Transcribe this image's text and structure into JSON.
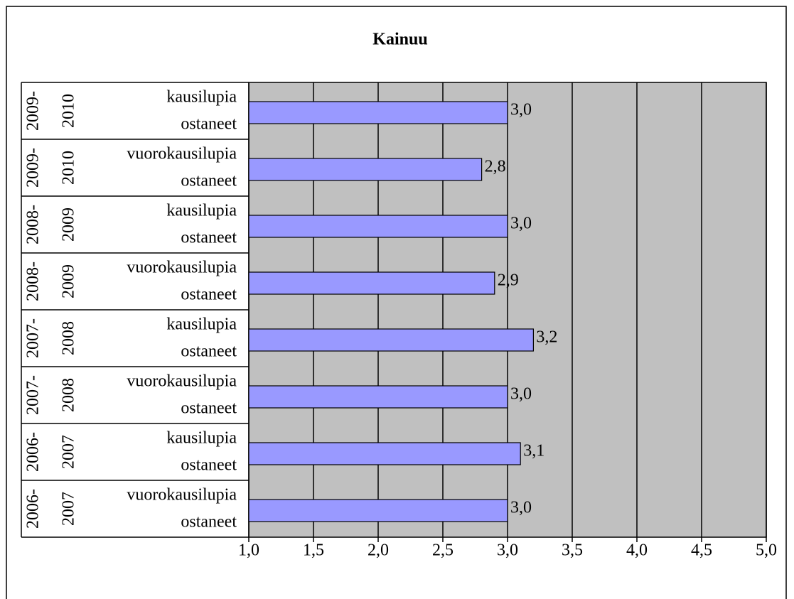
{
  "chart_data": {
    "type": "hbar",
    "title": "Kainuu",
    "category_groups": [
      [
        "2009-",
        "2010"
      ],
      [
        "2009-",
        "2010"
      ],
      [
        "2008-",
        "2009"
      ],
      [
        "2008-",
        "2009"
      ],
      [
        "2007-",
        "2008"
      ],
      [
        "2007-",
        "2008"
      ],
      [
        "2006-",
        "2007"
      ],
      [
        "2006-",
        "2007"
      ]
    ],
    "categories": [
      [
        "kausilupia",
        "ostaneet"
      ],
      [
        "vuorokausilupia",
        "ostaneet"
      ],
      [
        "kausilupia",
        "ostaneet"
      ],
      [
        "vuorokausilupia",
        "ostaneet"
      ],
      [
        "kausilupia",
        "ostaneet"
      ],
      [
        "vuorokausilupia",
        "ostaneet"
      ],
      [
        "kausilupia",
        "ostaneet"
      ],
      [
        "vuorokausilupia",
        "ostaneet"
      ]
    ],
    "values": [
      3.0,
      2.8,
      3.0,
      2.9,
      3.2,
      3.0,
      3.1,
      3.0
    ],
    "value_labels": [
      "3,0",
      "2,8",
      "3,0",
      "2,9",
      "3,2",
      "3,0",
      "3,1",
      "3,0"
    ],
    "color": "#9999ff",
    "plot_background": "#c0c0c0",
    "xlim": [
      1,
      5
    ],
    "xticks": [
      {
        "value": 1,
        "label": "1,0"
      },
      {
        "value": 1.5,
        "label": "1,5"
      },
      {
        "value": 2,
        "label": "2,0"
      },
      {
        "value": 2.5,
        "label": "2,5"
      },
      {
        "value": 3,
        "label": "3,0"
      },
      {
        "value": 3.5,
        "label": "3,5"
      },
      {
        "value": 4,
        "label": "4,0"
      },
      {
        "value": 4.5,
        "label": "4,5"
      },
      {
        "value": 5,
        "label": "5,0"
      }
    ],
    "grid": true
  }
}
